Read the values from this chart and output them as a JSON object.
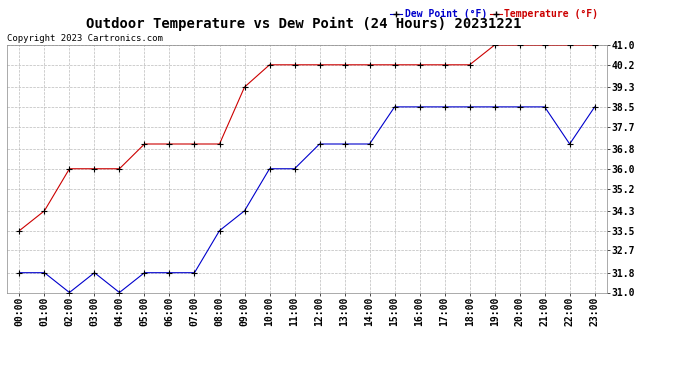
{
  "title": "Outdoor Temperature vs Dew Point (24 Hours) 20231221",
  "copyright_text": "Copyright 2023 Cartronics.com",
  "legend_dew_point": "Dew Point (°F)",
  "legend_temp": "Temperature (°F)",
  "x_labels": [
    "00:00",
    "01:00",
    "02:00",
    "03:00",
    "04:00",
    "05:00",
    "06:00",
    "07:00",
    "08:00",
    "09:00",
    "10:00",
    "11:00",
    "12:00",
    "13:00",
    "14:00",
    "15:00",
    "16:00",
    "17:00",
    "18:00",
    "19:00",
    "20:00",
    "21:00",
    "22:00",
    "23:00"
  ],
  "temperature": [
    33.5,
    34.3,
    36.0,
    36.0,
    36.0,
    37.0,
    37.0,
    37.0,
    37.0,
    39.3,
    40.2,
    40.2,
    40.2,
    40.2,
    40.2,
    40.2,
    40.2,
    40.2,
    40.2,
    41.0,
    41.0,
    41.0,
    41.0,
    41.0
  ],
  "dew_point": [
    31.8,
    31.8,
    31.0,
    31.8,
    31.0,
    31.8,
    31.8,
    31.8,
    33.5,
    34.3,
    36.0,
    36.0,
    37.0,
    37.0,
    37.0,
    38.5,
    38.5,
    38.5,
    38.5,
    38.5,
    38.5,
    38.5,
    37.0,
    38.5
  ],
  "temp_color": "#cc0000",
  "dew_color": "#0000cc",
  "marker": "+",
  "marker_color": "black",
  "ylim_min": 31.0,
  "ylim_max": 41.0,
  "yticks": [
    31.0,
    31.8,
    32.7,
    33.5,
    34.3,
    35.2,
    36.0,
    36.8,
    37.7,
    38.5,
    39.3,
    40.2,
    41.0
  ],
  "bg_color": "#ffffff",
  "grid_color": "#bbbbbb",
  "title_fontsize": 10,
  "copyright_fontsize": 6.5,
  "legend_fontsize": 7,
  "tick_fontsize": 7
}
